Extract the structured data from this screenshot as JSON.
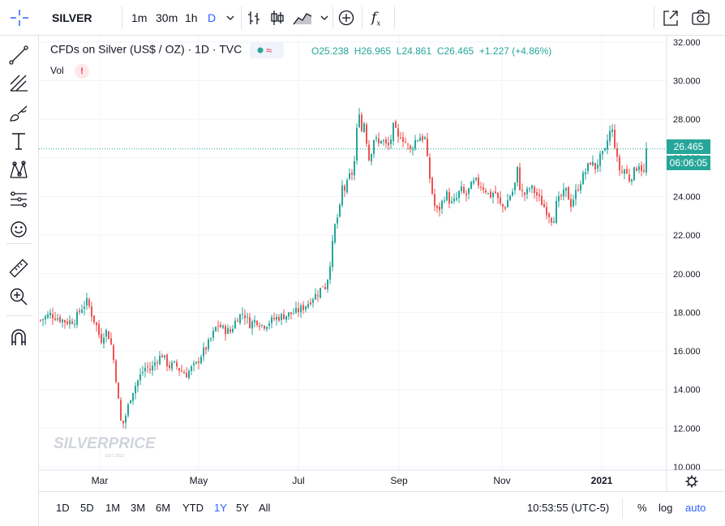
{
  "toolbar": {
    "symbol": "SILVER",
    "intervals": [
      "1m",
      "30m",
      "1h",
      "D"
    ],
    "active_interval": "D",
    "fx_label": "f",
    "fx_sub": "x"
  },
  "legend": {
    "title": "CFDs on Silver (US$ / OZ) · 1D · TVC",
    "open": "O25.238",
    "high": "H26.965",
    "low": "L24.861",
    "close": "C26.465",
    "change": "+1.227 (+4.86%)",
    "vol_label": "Vol",
    "vol_warning": "!"
  },
  "price_axis": {
    "last_price": "26.465",
    "countdown": "06:06:05"
  },
  "watermark": {
    "brand": "SILVERPRICE",
    "sub": "EST. 2012"
  },
  "bottom": {
    "ranges": [
      "1D",
      "5D",
      "1M",
      "3M",
      "6M",
      "YTD",
      "1Y",
      "5Y",
      "All"
    ],
    "active_range": "1Y",
    "time": "10:53:55 (UTC-5)",
    "percent": "%",
    "log": "log",
    "auto": "auto"
  },
  "colors": {
    "up": "#26a69a",
    "down": "#ef5350",
    "accent": "#2962ff"
  },
  "chart_data": {
    "type": "candlestick",
    "title": "CFDs on Silver (US$ / OZ) · 1D · TVC",
    "ylim": [
      10,
      32.5
    ],
    "y_ticks": [
      "32.000",
      "30.000",
      "28.000",
      "26.000",
      "24.000",
      "22.000",
      "20.000",
      "18.000",
      "16.000",
      "14.000",
      "12.000",
      "10.000"
    ],
    "x_ticks": [
      "Mar",
      "May",
      "Jul",
      "Sep",
      "Nov",
      "2021"
    ],
    "grid": true,
    "last_price": 26.465,
    "close_path": [
      [
        0,
        17.6
      ],
      [
        12,
        17.9
      ],
      [
        22,
        17.7
      ],
      [
        32,
        17.5
      ],
      [
        42,
        17.6
      ],
      [
        50,
        18.2
      ],
      [
        58,
        18.6
      ],
      [
        62,
        18.0
      ],
      [
        70,
        17.2
      ],
      [
        74,
        16.5
      ],
      [
        80,
        17.1
      ],
      [
        86,
        16.6
      ],
      [
        92,
        15.0
      ],
      [
        96,
        13.4
      ],
      [
        100,
        12.0
      ],
      [
        106,
        12.8
      ],
      [
        112,
        13.8
      ],
      [
        118,
        14.3
      ],
      [
        124,
        14.8
      ],
      [
        130,
        15.2
      ],
      [
        136,
        15.0
      ],
      [
        142,
        15.5
      ],
      [
        150,
        15.8
      ],
      [
        158,
        15.2
      ],
      [
        166,
        15.3
      ],
      [
        172,
        15.0
      ],
      [
        180,
        14.8
      ],
      [
        186,
        15.1
      ],
      [
        192,
        15.3
      ],
      [
        198,
        15.8
      ],
      [
        206,
        16.3
      ],
      [
        212,
        16.8
      ],
      [
        218,
        17.4
      ],
      [
        226,
        17.1
      ],
      [
        234,
        17.0
      ],
      [
        242,
        17.7
      ],
      [
        250,
        18.0
      ],
      [
        258,
        17.4
      ],
      [
        266,
        17.6
      ],
      [
        274,
        17.3
      ],
      [
        282,
        17.5
      ],
      [
        290,
        17.7
      ],
      [
        298,
        17.8
      ],
      [
        306,
        17.9
      ],
      [
        314,
        18.0
      ],
      [
        322,
        18.2
      ],
      [
        330,
        18.5
      ],
      [
        336,
        18.8
      ],
      [
        342,
        19.0
      ],
      [
        348,
        19.4
      ],
      [
        352,
        19.3
      ],
      [
        356,
        20.3
      ],
      [
        360,
        21.5
      ],
      [
        364,
        22.8
      ],
      [
        368,
        23.0
      ],
      [
        372,
        24.5
      ],
      [
        376,
        24.3
      ],
      [
        380,
        25.0
      ],
      [
        384,
        25.2
      ],
      [
        388,
        26.0
      ],
      [
        392,
        28.8
      ],
      [
        396,
        27.4
      ],
      [
        400,
        28.0
      ],
      [
        404,
        25.8
      ],
      [
        408,
        26.4
      ],
      [
        412,
        27.2
      ],
      [
        416,
        26.6
      ],
      [
        420,
        27.0
      ],
      [
        424,
        26.8
      ],
      [
        428,
        26.5
      ],
      [
        432,
        27.0
      ],
      [
        436,
        27.8
      ],
      [
        440,
        26.9
      ],
      [
        444,
        27.2
      ],
      [
        450,
        26.8
      ],
      [
        456,
        26.4
      ],
      [
        462,
        26.9
      ],
      [
        468,
        27.1
      ],
      [
        474,
        27.0
      ],
      [
        478,
        25.5
      ],
      [
        482,
        24.4
      ],
      [
        486,
        23.5
      ],
      [
        490,
        23.2
      ],
      [
        494,
        23.6
      ],
      [
        500,
        24.2
      ],
      [
        506,
        23.6
      ],
      [
        512,
        23.8
      ],
      [
        518,
        24.4
      ],
      [
        524,
        24.0
      ],
      [
        530,
        24.5
      ],
      [
        536,
        24.8
      ],
      [
        542,
        24.6
      ],
      [
        548,
        24.4
      ],
      [
        554,
        24.0
      ],
      [
        560,
        24.3
      ],
      [
        566,
        23.6
      ],
      [
        572,
        23.4
      ],
      [
        578,
        24.0
      ],
      [
        584,
        24.4
      ],
      [
        588,
        25.4
      ],
      [
        592,
        24.2
      ],
      [
        598,
        24.1
      ],
      [
        604,
        24.5
      ],
      [
        610,
        24.2
      ],
      [
        616,
        23.8
      ],
      [
        622,
        23.4
      ],
      [
        628,
        23.0
      ],
      [
        632,
        22.7
      ],
      [
        636,
        23.6
      ],
      [
        642,
        24.0
      ],
      [
        648,
        24.3
      ],
      [
        654,
        23.6
      ],
      [
        660,
        24.2
      ],
      [
        666,
        24.8
      ],
      [
        672,
        25.3
      ],
      [
        678,
        25.8
      ],
      [
        684,
        25.5
      ],
      [
        690,
        26.0
      ],
      [
        696,
        26.3
      ],
      [
        700,
        27.1
      ],
      [
        704,
        27.6
      ],
      [
        708,
        26.7
      ],
      [
        712,
        25.6
      ],
      [
        716,
        25.2
      ],
      [
        720,
        25.4
      ],
      [
        726,
        24.9
      ],
      [
        732,
        25.3
      ],
      [
        738,
        25.7
      ],
      [
        744,
        25.2
      ],
      [
        748,
        26.5
      ]
    ]
  }
}
